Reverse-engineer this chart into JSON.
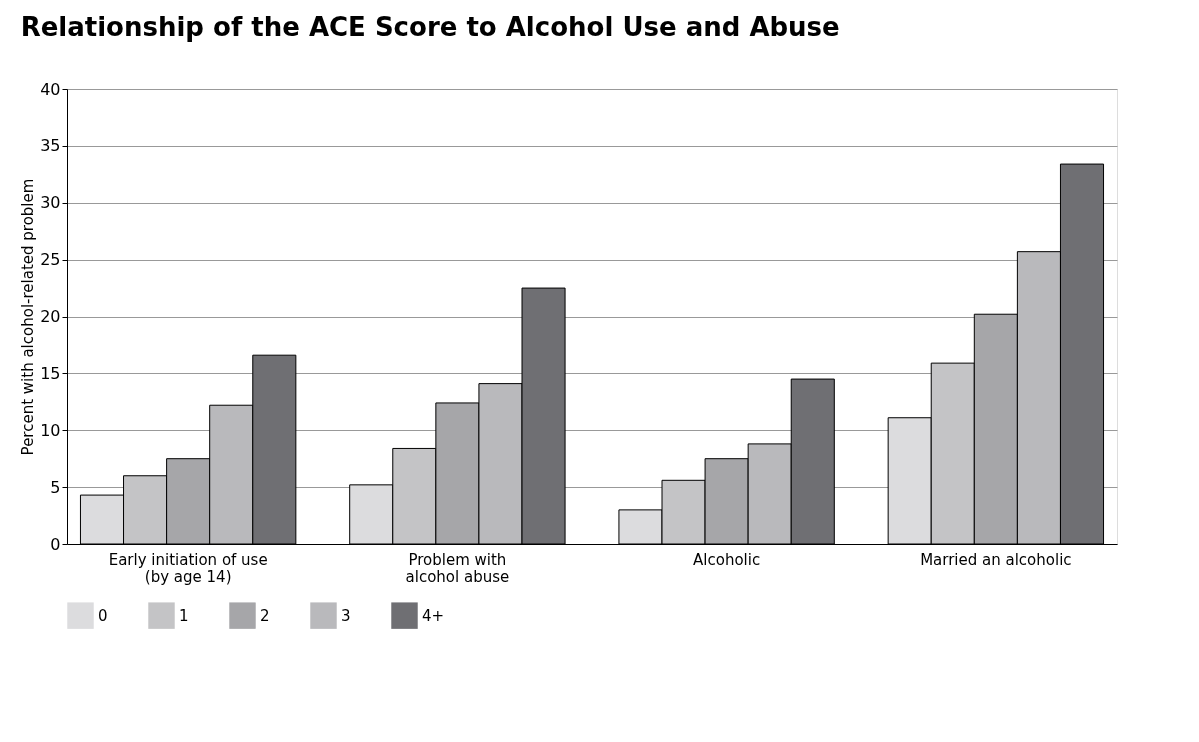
{
  "chart_data": {
    "type": "bar",
    "title": "Relationship of the ACE Score to Alcohol Use and Abuse",
    "ylabel": "Percent with alcohol-related problem",
    "categories": [
      "Early initiation of use\n(by age 14)",
      "Problem with\nalcohol abuse",
      "Alcoholic",
      "Married an alcoholic"
    ],
    "series": [
      {
        "name": "0",
        "color": "#dcdcde",
        "values": [
          4.3,
          5.2,
          3.0,
          11.1
        ]
      },
      {
        "name": "1",
        "color": "#c4c4c6",
        "values": [
          6.0,
          8.4,
          5.6,
          15.9
        ]
      },
      {
        "name": "2",
        "color": "#a6a6a9",
        "values": [
          7.5,
          12.4,
          7.5,
          20.2
        ]
      },
      {
        "name": "3",
        "color": "#b9b9bc",
        "values": [
          12.2,
          14.1,
          8.8,
          25.7
        ]
      },
      {
        "name": "4+",
        "color": "#6f6f73",
        "values": [
          16.6,
          22.5,
          14.5,
          33.4
        ]
      }
    ],
    "ylim": [
      0,
      40
    ],
    "yticks": [
      0,
      5,
      10,
      15,
      20,
      25,
      30,
      35,
      40
    ],
    "grid": "y",
    "legend": "bottom"
  }
}
